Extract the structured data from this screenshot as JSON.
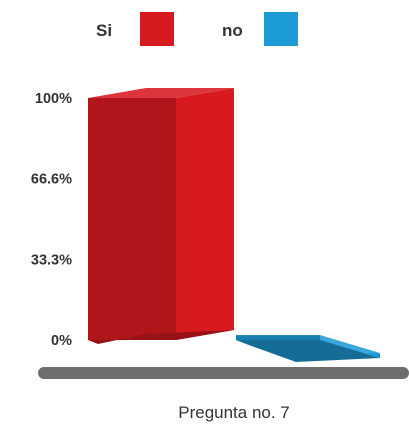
{
  "chart_data": {
    "type": "bar",
    "categories": [
      "Pregunta no. 7"
    ],
    "series": [
      {
        "name": "Si",
        "values": [
          100
        ],
        "color": "#d71920"
      },
      {
        "name": "no",
        "values": [
          2
        ],
        "color": "#1e9bd7"
      }
    ],
    "title": "",
    "xlabel": "",
    "ylabel": "",
    "ylim": [
      0,
      100
    ],
    "yticks": [
      "0%",
      "33.3%",
      "66.6%",
      "100%"
    ],
    "legend": "top",
    "grid": false,
    "style": "3d-bars"
  }
}
